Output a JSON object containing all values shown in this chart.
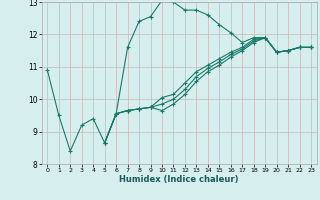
{
  "xlabel": "Humidex (Indice chaleur)",
  "ylabel": "",
  "xlim": [
    -0.5,
    23.5
  ],
  "ylim": [
    8,
    13
  ],
  "yticks": [
    8,
    9,
    10,
    11,
    12,
    13
  ],
  "xticks": [
    0,
    1,
    2,
    3,
    4,
    5,
    6,
    7,
    8,
    9,
    10,
    11,
    12,
    13,
    14,
    15,
    16,
    17,
    18,
    19,
    20,
    21,
    22,
    23
  ],
  "background_color": "#d6eeee",
  "grid_color": "#c8b8b8",
  "line_color": "#1a7a6a",
  "lines": [
    {
      "x": [
        0,
        1,
        2,
        3,
        4,
        5,
        6,
        7,
        8,
        9,
        10,
        11,
        12,
        13,
        14,
        15,
        16,
        17,
        18,
        19,
        20,
        21,
        22,
        23
      ],
      "y": [
        10.9,
        9.5,
        8.4,
        9.2,
        9.4,
        8.65,
        9.55,
        11.6,
        12.4,
        12.55,
        13.05,
        13.0,
        12.75,
        12.75,
        12.6,
        12.3,
        12.05,
        11.75,
        11.9,
        11.9,
        11.45,
        11.5,
        11.6,
        11.6
      ]
    },
    {
      "x": [
        5,
        6,
        7,
        8,
        9,
        10,
        11,
        12,
        13,
        14,
        15,
        16,
        17,
        18,
        19,
        20,
        21,
        22,
        23
      ],
      "y": [
        8.65,
        9.55,
        9.65,
        9.7,
        9.75,
        10.05,
        10.15,
        10.5,
        10.85,
        11.05,
        11.25,
        11.45,
        11.6,
        11.85,
        11.9,
        11.45,
        11.5,
        11.6,
        11.6
      ]
    },
    {
      "x": [
        5,
        6,
        7,
        8,
        9,
        10,
        11,
        12,
        13,
        14,
        15,
        16,
        17,
        18,
        19,
        20,
        21,
        22,
        23
      ],
      "y": [
        8.65,
        9.55,
        9.65,
        9.7,
        9.75,
        9.85,
        10.0,
        10.3,
        10.7,
        10.95,
        11.15,
        11.38,
        11.55,
        11.8,
        11.9,
        11.45,
        11.5,
        11.6,
        11.6
      ]
    },
    {
      "x": [
        5,
        6,
        7,
        8,
        9,
        10,
        11,
        12,
        13,
        14,
        15,
        16,
        17,
        18,
        19,
        20,
        21,
        22,
        23
      ],
      "y": [
        8.65,
        9.55,
        9.65,
        9.7,
        9.75,
        9.65,
        9.85,
        10.15,
        10.55,
        10.85,
        11.05,
        11.3,
        11.5,
        11.75,
        11.9,
        11.45,
        11.5,
        11.6,
        11.6
      ]
    }
  ]
}
